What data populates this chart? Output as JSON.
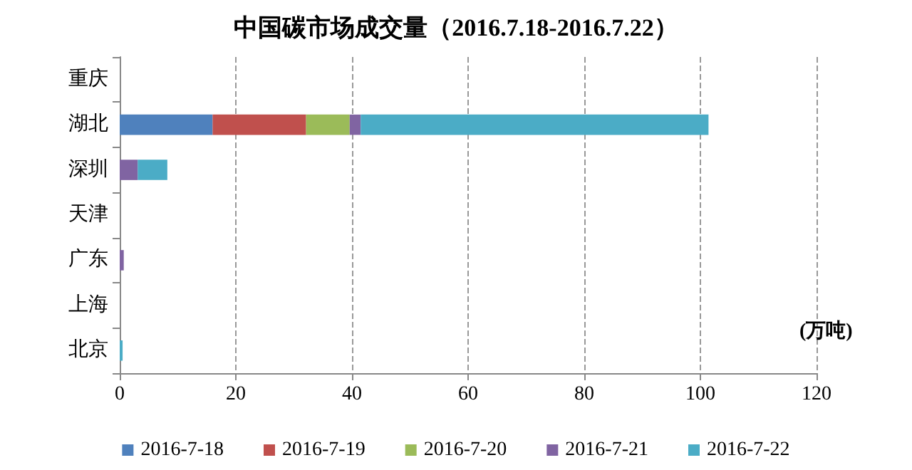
{
  "chart_data": {
    "type": "bar",
    "orientation": "horizontal",
    "stacked": true,
    "title": "中国碳市场成交量（2016.7.18-2016.7.22）",
    "xlabel": "(万吨)",
    "categories": [
      "重庆",
      "湖北",
      "深圳",
      "天津",
      "广东",
      "上海",
      "北京"
    ],
    "series": [
      {
        "name": "2016-7-18",
        "color": "#4f81bd",
        "values": [
          0,
          16,
          0,
          0,
          0,
          0,
          0
        ]
      },
      {
        "name": "2016-7-19",
        "color": "#c0504d",
        "values": [
          0,
          16.1,
          0,
          0,
          0,
          0,
          0
        ]
      },
      {
        "name": "2016-7-20",
        "color": "#9bbb59",
        "values": [
          0,
          7.5,
          0,
          0,
          0,
          0,
          0
        ]
      },
      {
        "name": "2016-7-21",
        "color": "#8064a2",
        "values": [
          0,
          1.9,
          3.1,
          0,
          0.7,
          0,
          0
        ]
      },
      {
        "name": "2016-7-22",
        "color": "#4bacc6",
        "values": [
          0,
          59.9,
          5.1,
          0,
          0,
          0,
          0.5
        ]
      }
    ],
    "xlim": [
      0,
      120
    ],
    "xticks": [
      0,
      20,
      40,
      60,
      80,
      100,
      120
    ],
    "grid": "x",
    "legend": "bottom"
  }
}
